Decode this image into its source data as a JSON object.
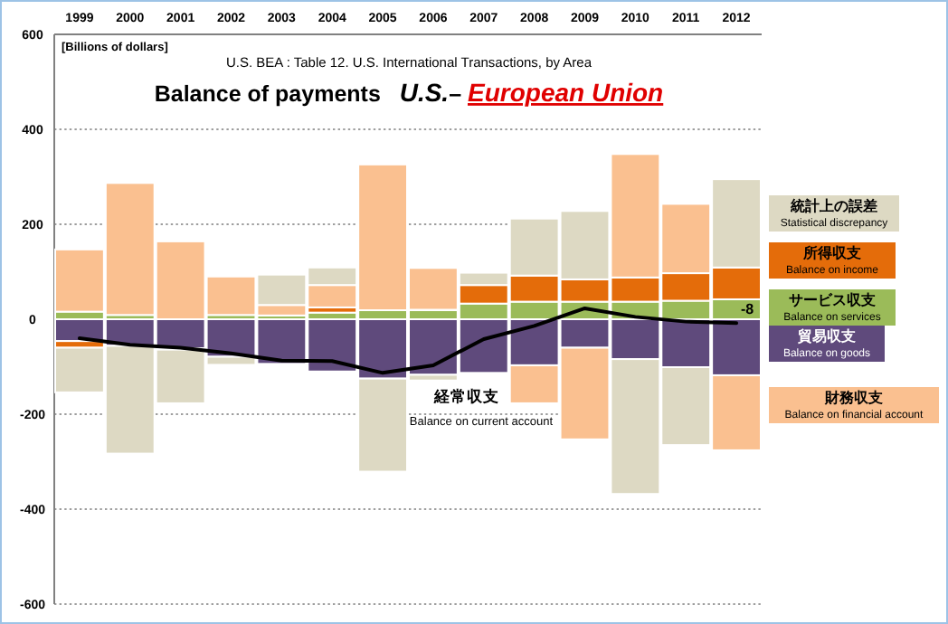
{
  "chart_data": {
    "type": "bar",
    "stacked": true,
    "title": "Balance of payments   *U.S.*– *European Union*",
    "subtitle": "U.S.  BEA : Table 12. U.S. International Transactions, by Area",
    "ylabel": "[Billions of dollars]",
    "categories": [
      "1999",
      "2000",
      "2001",
      "2002",
      "2003",
      "2004",
      "2005",
      "2006",
      "2007",
      "2008",
      "2009",
      "2010",
      "2011",
      "2012"
    ],
    "ylim": [
      -600,
      600
    ],
    "yticks": [
      -600,
      -400,
      -200,
      0,
      200,
      400,
      600
    ],
    "grid": "y",
    "legend": "right",
    "series": [
      {
        "name": "貿易収支\nBalance on goods",
        "color": "#5f4a7c",
        "values": [
          -46,
          -56,
          -61,
          -79,
          -94,
          -110,
          -125,
          -117,
          -113,
          -97,
          -60,
          -84,
          -101,
          -118
        ]
      },
      {
        "name": "サービス収支\nBalance on services",
        "color": "#9bbb59",
        "values": [
          16,
          9,
          null,
          9,
          8,
          14,
          19,
          19,
          33,
          37,
          37,
          37,
          39,
          42
        ]
      },
      {
        "name": "所得収支\nBalance on income",
        "color": "#e46c0a",
        "values": [
          -14,
          null,
          -3,
          null,
          null,
          11,
          null,
          1,
          39,
          55,
          47,
          51,
          58,
          67
        ]
      },
      {
        "name": "財務収支\nBalance on financial account",
        "color": "#fac090",
        "values": [
          131,
          278,
          164,
          81,
          22,
          47,
          307,
          88,
          null,
          -80,
          -193,
          260,
          146,
          -158
        ]
      },
      {
        "name": "統計上の誤差\nStatistical discrepancy",
        "color": "#ddd9c3",
        "values": [
          -94,
          -227,
          -113,
          -17,
          64,
          37,
          -196,
          -12,
          26,
          120,
          144,
          -284,
          -164,
          186
        ]
      },
      {
        "name": "経常収支\nBalance on current account",
        "type": "line",
        "color": "#000000",
        "values": [
          -40,
          -54,
          -60,
          -72,
          -87,
          -88,
          -113,
          -97,
          -42,
          -14,
          23,
          5,
          -5,
          -8
        ],
        "value_labels": [
          null,
          null,
          null,
          null,
          null,
          null,
          null,
          null,
          null,
          null,
          null,
          null,
          null,
          "-8"
        ]
      }
    ]
  }
}
